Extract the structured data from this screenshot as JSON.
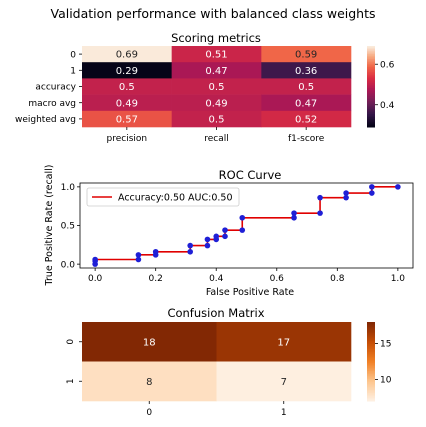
{
  "figure": {
    "suptitle": "Validation performance with balanced class weights"
  },
  "chart_data": [
    {
      "type": "heatmap",
      "title": "Scoring metrics",
      "rows": [
        "0",
        "1",
        "accuracy",
        "macro avg",
        "weighted avg"
      ],
      "columns": [
        "precision",
        "recall",
        "f1-score"
      ],
      "values": [
        [
          0.69,
          0.51,
          0.59
        ],
        [
          0.29,
          0.47,
          0.36
        ],
        [
          0.5,
          0.5,
          0.5
        ],
        [
          0.49,
          0.49,
          0.47
        ],
        [
          0.57,
          0.5,
          0.52
        ]
      ],
      "value_labels": [
        [
          "0.69",
          "0.51",
          "0.59"
        ],
        [
          "0.29",
          "0.47",
          "0.36"
        ],
        [
          "0.5",
          "0.5",
          "0.5"
        ],
        [
          "0.49",
          "0.49",
          "0.47"
        ],
        [
          "0.57",
          "0.5",
          "0.52"
        ]
      ],
      "colormap": "rocket",
      "color_range": [
        0.29,
        0.69
      ],
      "colorbar_ticks": [
        0.4,
        0.6
      ],
      "colorbar_tick_labels": [
        "0.4",
        "0.6"
      ]
    },
    {
      "type": "line",
      "title": "ROC Curve",
      "xlabel": "False Positive Rate",
      "ylabel": "True Positive Rate (recall)",
      "xlim": [
        -0.05,
        1.05
      ],
      "ylim": [
        -0.05,
        1.05
      ],
      "xticks": [
        0.0,
        0.2,
        0.4,
        0.6,
        0.8,
        1.0
      ],
      "xtick_labels": [
        "0.0",
        "0.2",
        "0.4",
        "0.6",
        "0.8",
        "1.0"
      ],
      "yticks": [
        0.0,
        0.5,
        1.0
      ],
      "ytick_labels": [
        "0.0",
        "0.5",
        "1.0"
      ],
      "legend_position": "top-left",
      "line_color": "#e00000",
      "marker_color": "#1f1fd6",
      "series": [
        {
          "name": "Accuracy:0.50 AUC:0.50",
          "x": [
            0.0,
            0.0,
            0.0,
            0.143,
            0.143,
            0.2,
            0.2,
            0.314,
            0.314,
            0.371,
            0.371,
            0.4,
            0.4,
            0.429,
            0.429,
            0.486,
            0.486,
            0.657,
            0.657,
            0.743,
            0.743,
            0.829,
            0.829,
            0.914,
            0.914,
            1.0
          ],
          "y": [
            0.0,
            0.04,
            0.06,
            0.06,
            0.12,
            0.12,
            0.16,
            0.16,
            0.24,
            0.24,
            0.32,
            0.32,
            0.36,
            0.36,
            0.44,
            0.44,
            0.6,
            0.6,
            0.66,
            0.66,
            0.86,
            0.86,
            0.92,
            0.92,
            1.0,
            1.0
          ]
        }
      ]
    },
    {
      "type": "heatmap",
      "title": "Confusion Matrix",
      "rows": [
        "0",
        "1"
      ],
      "columns": [
        "0",
        "1"
      ],
      "values": [
        [
          18,
          17
        ],
        [
          8,
          7
        ]
      ],
      "value_labels": [
        [
          "18",
          "17"
        ],
        [
          "8",
          "7"
        ]
      ],
      "colormap": "oranges",
      "color_range": [
        7,
        18
      ],
      "colorbar_ticks": [
        10,
        15
      ],
      "colorbar_tick_labels": [
        "10",
        "15"
      ]
    }
  ]
}
